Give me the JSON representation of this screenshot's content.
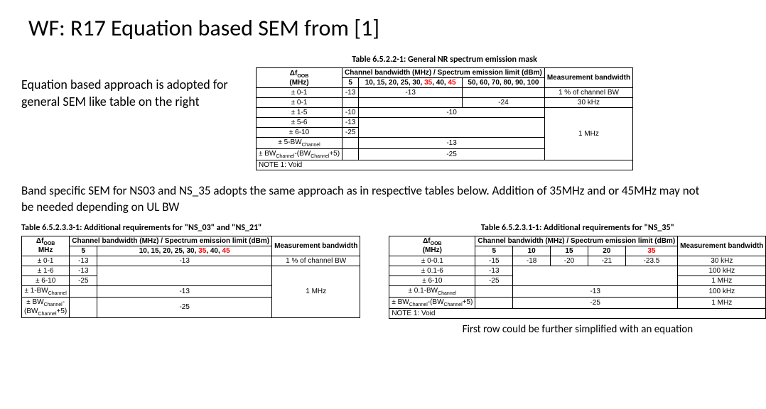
{
  "title": "WF: R17 Equation based SEM from [1]",
  "intro": "Equation based approach is adopted for general SEM like table on the right",
  "midPara": "Band specific SEM for NS03 and NS_35 adopts the same approach as in respective tables below. Addition of 35MHz and or 45MHz may not be needed depending on UL BW",
  "footnote": "First row could be further simplified with an equation",
  "table1": {
    "caption": "Table 6.5.2.2-1: General NR spectrum emission mask",
    "hdr_foob": "Δf",
    "hdr_foob_sub": "OOB",
    "hdr_foob_unit": "(MHz)",
    "hdr_cb": "Channel bandwidth (MHz) / Spectrum emission limit (dBm)",
    "hdr_meas": "Measurement bandwidth",
    "col_5": "5",
    "col_mid_a": "10, 15, 20, 25, 30, ",
    "col_mid_35": "35",
    "col_mid_b": ", 40, ",
    "col_mid_45": "45",
    "col_high": "50, 60, 70, 80, 90, 100",
    "r1_l": "± 0-1",
    "r1_a": "-13",
    "r1_b": "-13",
    "r1_m": "1 % of channel BW",
    "r2_l": "± 0-1",
    "r2_b": "-24",
    "r2_m": "30 kHz",
    "r3_l": "± 1-5",
    "r3_a": "-10",
    "r3_b": "-10",
    "r4_l": "± 5-6",
    "r4_a": "-13",
    "r5_l": "± 6-10",
    "r5_a": "-25",
    "r5_m": "1 MHz",
    "r6_l_a": "± 5-BW",
    "r6_l_sub": "Channel",
    "r6_b": "-13",
    "r7_l_a": "± BW",
    "r7_l_sub1": "Channel",
    "r7_l_b": "-(BW",
    "r7_l_sub2": "Channel",
    "r7_l_c": "+5)",
    "r7_b": "-25",
    "note": "NOTE 1: Void"
  },
  "table2": {
    "caption": "Table 6.5.2.3.3-1: Additional requirements for \"NS_03\" and \"NS_21\"",
    "hdr_foob": "Δf",
    "hdr_foob_sub": "OOB",
    "hdr_foob_unit": "MHz",
    "hdr_cb": "Channel bandwidth (MHz) / Spectrum emission limit (dBm)",
    "hdr_meas": "Measurement bandwidth",
    "col_5": "5",
    "col_mid_a": "10, 15, 20, 25, 30, ",
    "col_mid_35": "35",
    "col_mid_b": ", 40, ",
    "col_mid_45": "45",
    "r1_l": "± 0-1",
    "r1_a": "-13",
    "r1_b": "-13",
    "r1_m": "1 % of channel BW",
    "r2_l": "± 1-6",
    "r2_a": "-13",
    "r3_l": "± 6-10",
    "r3_a": "-25",
    "r_m": "1 MHz",
    "r4_l_a": "± 1-BW",
    "r4_l_sub": "Channel",
    "r4_b": "-13",
    "r5_l_a": "± BW",
    "r5_l_sub1": "Channel",
    "r5_l_b": "-",
    "r5_l_c": "(BW",
    "r5_l_sub2": "Channel",
    "r5_l_d": "+5)",
    "r5_b": "-25"
  },
  "table3": {
    "caption": "Table 6.5.2.3.1-1: Additional requirements for \"NS_35\"",
    "hdr_foob": "Δf",
    "hdr_foob_sub": "OOB",
    "hdr_foob_unit": "(MHz)",
    "hdr_cb": "Channel bandwidth (MHz) / Spectrum emission limit (dBm)",
    "hdr_meas": "Measurement bandwidth",
    "c5": "5",
    "c10": "10",
    "c15": "15",
    "c20": "20",
    "c35": "35",
    "r1_l": "± 0-0.1",
    "r1_5": "-15",
    "r1_10": "-18",
    "r1_15": "-20",
    "r1_20": "-21",
    "r1_35": "-23.5",
    "r1_m": "30 kHz",
    "r2_l": "± 0.1-6",
    "r2_5": "-13",
    "r2_m": "100 kHz",
    "r3_l": "± 6-10",
    "r3_5": "-25",
    "r3_m": "1 MHz",
    "r4_l_a": "± 0.1-BW",
    "r4_l_sub": "Channel",
    "r4_b": "-13",
    "r4_m": "100 kHz",
    "r5_l_a": "± BW",
    "r5_l_sub1": "Channel",
    "r5_l_b": "-(BW",
    "r5_l_sub2": "Channel",
    "r5_l_c": "+5)",
    "r5_b": "-25",
    "r5_m": "1 MHz",
    "note": "NOTE 1: Void"
  }
}
